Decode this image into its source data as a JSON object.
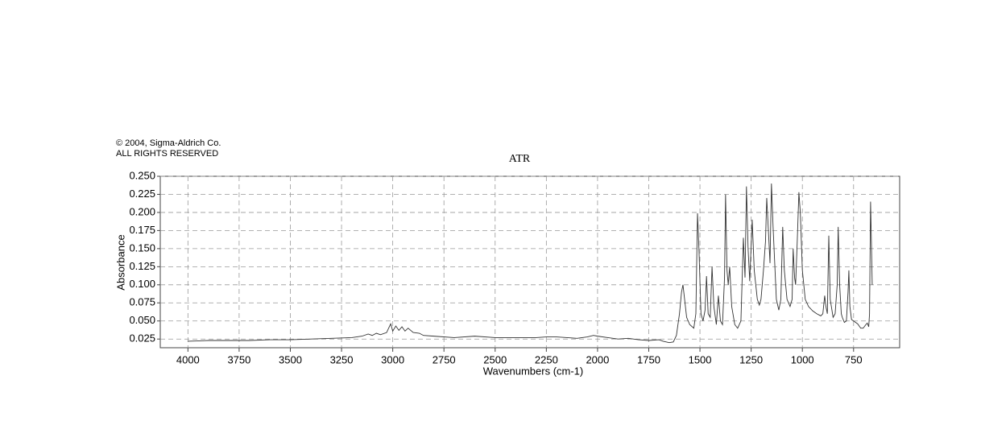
{
  "chart_data": {
    "type": "line",
    "title": "ATR",
    "notice": [
      "© 2004, Sigma-Aldrich Co.",
      "ALL RIGHTS RESERVED"
    ],
    "x_label": "Wavenumbers (cm-1)",
    "y_label": "Absorbance",
    "xlim": [
      4135,
      525
    ],
    "ylim": [
      0.013,
      0.25
    ],
    "xticks": [
      4000,
      3750,
      3500,
      3250,
      3000,
      2750,
      2500,
      2250,
      2000,
      1750,
      1500,
      1250,
      1000,
      750
    ],
    "yticks": [
      {
        "value": 0.025,
        "label": "0.025"
      },
      {
        "value": 0.05,
        "label": "0.050"
      },
      {
        "value": 0.075,
        "label": "0.075"
      },
      {
        "value": 0.1,
        "label": "0.100"
      },
      {
        "value": 0.125,
        "label": "0.125"
      },
      {
        "value": 0.15,
        "label": "0.150"
      },
      {
        "value": 0.175,
        "label": "0.175"
      },
      {
        "value": 0.2,
        "label": "0.200"
      },
      {
        "value": 0.225,
        "label": "0.225"
      },
      {
        "value": 0.25,
        "label": "0.250"
      }
    ],
    "grid": true,
    "color": "#333333",
    "x": [
      4000,
      3900,
      3800,
      3700,
      3600,
      3500,
      3400,
      3300,
      3200,
      3150,
      3120,
      3100,
      3080,
      3060,
      3030,
      3010,
      3000,
      2985,
      2970,
      2955,
      2940,
      2925,
      2900,
      2870,
      2850,
      2800,
      2700,
      2600,
      2500,
      2400,
      2300,
      2250,
      2200,
      2100,
      2050,
      2020,
      2000,
      1950,
      1900,
      1850,
      1800,
      1750,
      1700,
      1680,
      1650,
      1630,
      1615,
      1600,
      1590,
      1583,
      1575,
      1565,
      1550,
      1530,
      1520,
      1512,
      1505,
      1495,
      1485,
      1475,
      1468,
      1460,
      1450,
      1441,
      1432,
      1420,
      1410,
      1400,
      1390,
      1380,
      1375,
      1368,
      1362,
      1355,
      1345,
      1330,
      1316,
      1300,
      1288,
      1280,
      1273,
      1265,
      1257,
      1245,
      1235,
      1220,
      1210,
      1202,
      1190,
      1180,
      1174,
      1165,
      1158,
      1151,
      1143,
      1135,
      1127,
      1115,
      1105,
      1096,
      1088,
      1075,
      1060,
      1050,
      1045,
      1038,
      1033,
      1025,
      1017,
      1010,
      1000,
      986,
      970,
      950,
      930,
      910,
      900,
      891,
      885,
      878,
      871,
      864,
      850,
      840,
      830,
      825,
      818,
      810,
      805,
      795,
      785,
      777,
      773,
      768,
      760,
      750,
      730,
      715,
      703,
      690,
      683,
      676,
      672,
      667,
      663,
      659
    ],
    "values": [
      0.022,
      0.023,
      0.023,
      0.023,
      0.024,
      0.024,
      0.025,
      0.026,
      0.027,
      0.029,
      0.032,
      0.03,
      0.033,
      0.031,
      0.034,
      0.046,
      0.036,
      0.043,
      0.037,
      0.042,
      0.036,
      0.04,
      0.034,
      0.033,
      0.03,
      0.029,
      0.027,
      0.029,
      0.027,
      0.027,
      0.027,
      0.028,
      0.028,
      0.026,
      0.028,
      0.03,
      0.029,
      0.027,
      0.025,
      0.026,
      0.024,
      0.023,
      0.024,
      0.022,
      0.02,
      0.021,
      0.03,
      0.06,
      0.09,
      0.1,
      0.08,
      0.055,
      0.045,
      0.04,
      0.06,
      0.199,
      0.15,
      0.06,
      0.05,
      0.065,
      0.112,
      0.06,
      0.055,
      0.125,
      0.07,
      0.045,
      0.085,
      0.05,
      0.045,
      0.11,
      0.225,
      0.12,
      0.1,
      0.125,
      0.07,
      0.045,
      0.04,
      0.05,
      0.165,
      0.11,
      0.236,
      0.15,
      0.105,
      0.19,
      0.12,
      0.08,
      0.072,
      0.08,
      0.12,
      0.16,
      0.22,
      0.17,
      0.13,
      0.24,
      0.18,
      0.13,
      0.08,
      0.065,
      0.08,
      0.18,
      0.12,
      0.08,
      0.07,
      0.08,
      0.15,
      0.11,
      0.1,
      0.16,
      0.228,
      0.2,
      0.12,
      0.08,
      0.07,
      0.064,
      0.06,
      0.057,
      0.06,
      0.085,
      0.07,
      0.06,
      0.168,
      0.08,
      0.055,
      0.06,
      0.1,
      0.18,
      0.1,
      0.06,
      0.055,
      0.048,
      0.05,
      0.09,
      0.12,
      0.07,
      0.052,
      0.05,
      0.046,
      0.04,
      0.04,
      0.045,
      0.047,
      0.042,
      0.06,
      0.215,
      0.16,
      0.1
    ]
  }
}
